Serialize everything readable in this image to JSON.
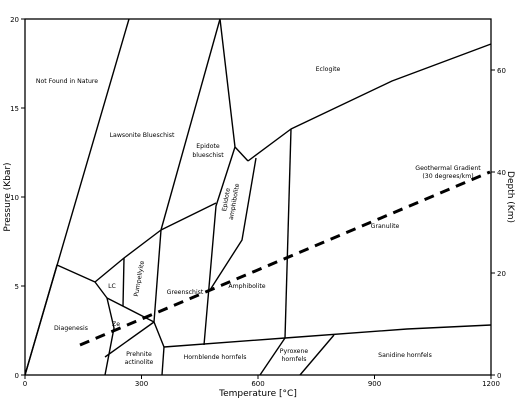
{
  "axes": {
    "x_title": "Temperature [°C]",
    "y_left_title": "Pressure (Kbar)",
    "y_right_title": "Depth (Km)",
    "x_ticks": [
      "0",
      "300",
      "600",
      "900",
      "1200"
    ],
    "y_left_ticks": [
      "0",
      "5",
      "10",
      "15",
      "20"
    ],
    "y_right_ticks": [
      "0",
      "20",
      "40",
      "60"
    ]
  },
  "labels": {
    "not_found": "Not Found in Nature",
    "lawsonite": "Lawsonite Blueschist",
    "epidote_blueschist_1": "Epidote",
    "epidote_blueschist_2": "blueschist",
    "eclogite": "Eclogite",
    "geothermal_1": "Geothermal Gradient",
    "geothermal_2": "(30 degrees/km)",
    "granulite": "Granulite",
    "epidote_amphibolite_1": "Epidote",
    "epidote_amphibolite_2": "amphibolite",
    "amphibolite": "Amphibolite",
    "greenschist": "Greenschist",
    "pumpellyite": "Pumpellyite",
    "lc": "LC",
    "ze": "Ze",
    "diagenesis": "Diagenesis",
    "prehnite_1": "Prehnite",
    "prehnite_2": "actinolite",
    "hornblende": "Hornblende hornfels",
    "pyroxene_1": "Pyroxene",
    "pyroxene_2": "hornfels",
    "sanidine": "Sanidine hornfels"
  }
}
